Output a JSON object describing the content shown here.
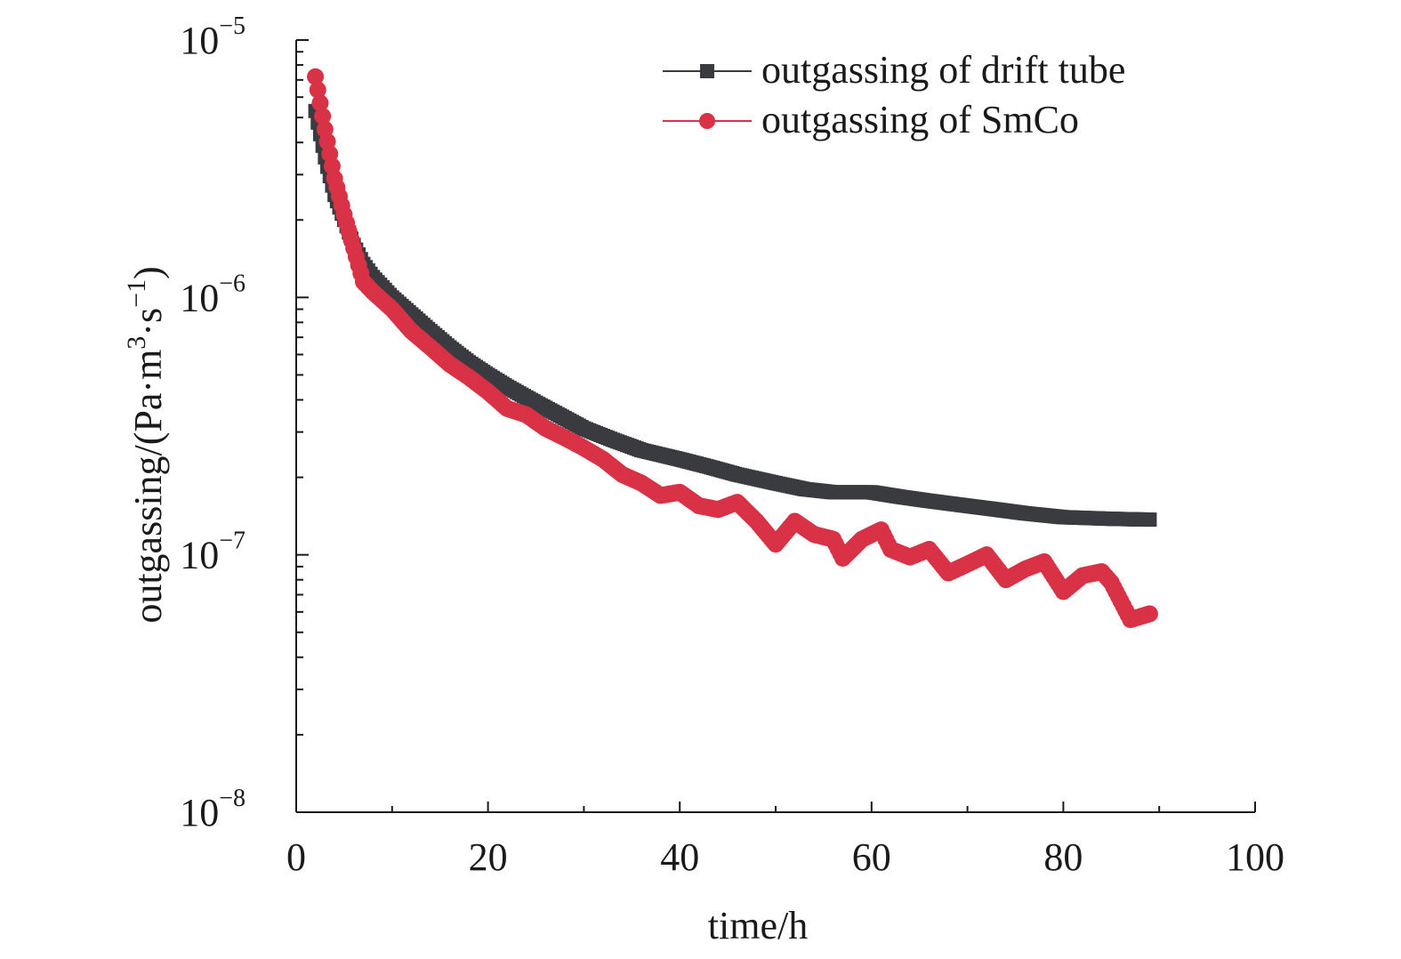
{
  "chart_data": {
    "type": "scatter",
    "xlabel": "time/h",
    "ylabel": "outgassing/(Pa·m³·s⁻¹)",
    "ylabel_parts": {
      "prefix": "outgassing/(Pa·m",
      "sup1": "3",
      "mid": "·s",
      "sup2": "−1",
      "suffix": ")"
    },
    "xlim": [
      0,
      100
    ],
    "ylim": [
      1e-08,
      1e-05
    ],
    "yscale": "log",
    "grid": false,
    "legend_position": "top-right",
    "x_ticks": [
      "0",
      "20",
      "40",
      "60",
      "80",
      "100"
    ],
    "y_ticks": [
      {
        "base": "10",
        "exp": "−5"
      },
      {
        "base": "10",
        "exp": "−6"
      },
      {
        "base": "10",
        "exp": "−7"
      },
      {
        "base": "10",
        "exp": "−8"
      }
    ],
    "series": [
      {
        "name": "outgassing of drift tube",
        "marker": "square",
        "color": "#3a3b40",
        "points": [
          [
            2,
            5.3e-06
          ],
          [
            3,
            3.5e-06
          ],
          [
            4,
            2.5e-06
          ],
          [
            5,
            2e-06
          ],
          [
            6,
            1.6e-06
          ],
          [
            7,
            1.35e-06
          ],
          [
            8,
            1.2e-06
          ],
          [
            10,
            1e-06
          ],
          [
            12,
            8.6e-07
          ],
          [
            14,
            7.4e-07
          ],
          [
            16,
            6.4e-07
          ],
          [
            18,
            5.6e-07
          ],
          [
            20,
            5e-07
          ],
          [
            22,
            4.5e-07
          ],
          [
            25,
            3.9e-07
          ],
          [
            28,
            3.4e-07
          ],
          [
            30,
            3.1e-07
          ],
          [
            33,
            2.8e-07
          ],
          [
            36,
            2.55e-07
          ],
          [
            40,
            2.35e-07
          ],
          [
            43,
            2.2e-07
          ],
          [
            46,
            2.05e-07
          ],
          [
            50,
            1.9e-07
          ],
          [
            53,
            1.8e-07
          ],
          [
            56,
            1.75e-07
          ],
          [
            60,
            1.75e-07
          ],
          [
            63,
            1.68e-07
          ],
          [
            66,
            1.62e-07
          ],
          [
            70,
            1.55e-07
          ],
          [
            73,
            1.5e-07
          ],
          [
            76,
            1.45e-07
          ],
          [
            80,
            1.4e-07
          ],
          [
            85,
            1.38e-07
          ],
          [
            89,
            1.37e-07
          ]
        ]
      },
      {
        "name": "outgassing of SmCo",
        "marker": "circle",
        "color": "#d93145",
        "points": [
          [
            2,
            7.2e-06
          ],
          [
            3,
            4.5e-06
          ],
          [
            4,
            2.9e-06
          ],
          [
            5,
            2.1e-06
          ],
          [
            6,
            1.55e-06
          ],
          [
            7,
            1.15e-06
          ],
          [
            8,
            1.05e-06
          ],
          [
            10,
            9e-07
          ],
          [
            12,
            7.4e-07
          ],
          [
            14,
            6.4e-07
          ],
          [
            16,
            5.5e-07
          ],
          [
            18,
            4.9e-07
          ],
          [
            20,
            4.3e-07
          ],
          [
            22,
            3.7e-07
          ],
          [
            24,
            3.5e-07
          ],
          [
            26,
            3.1e-07
          ],
          [
            28,
            2.85e-07
          ],
          [
            30,
            2.6e-07
          ],
          [
            32,
            2.35e-07
          ],
          [
            34,
            2.05e-07
          ],
          [
            36,
            1.9e-07
          ],
          [
            38,
            1.7e-07
          ],
          [
            40,
            1.75e-07
          ],
          [
            42,
            1.55e-07
          ],
          [
            44,
            1.5e-07
          ],
          [
            46,
            1.6e-07
          ],
          [
            48,
            1.35e-07
          ],
          [
            50,
            1.1e-07
          ],
          [
            52,
            1.35e-07
          ],
          [
            54,
            1.2e-07
          ],
          [
            56,
            1.15e-07
          ],
          [
            57,
            9.7e-08
          ],
          [
            59,
            1.15e-07
          ],
          [
            61,
            1.25e-07
          ],
          [
            62,
            1.05e-07
          ],
          [
            64,
            9.8e-08
          ],
          [
            66,
            1.05e-07
          ],
          [
            68,
            8.5e-08
          ],
          [
            70,
            9.2e-08
          ],
          [
            72,
            1e-07
          ],
          [
            74,
            8e-08
          ],
          [
            76,
            8.8e-08
          ],
          [
            78,
            9.4e-08
          ],
          [
            80,
            7.2e-08
          ],
          [
            82,
            8.3e-08
          ],
          [
            84,
            8.6e-08
          ],
          [
            85,
            7.8e-08
          ],
          [
            87,
            5.6e-08
          ],
          [
            89,
            5.9e-08
          ]
        ]
      }
    ]
  }
}
